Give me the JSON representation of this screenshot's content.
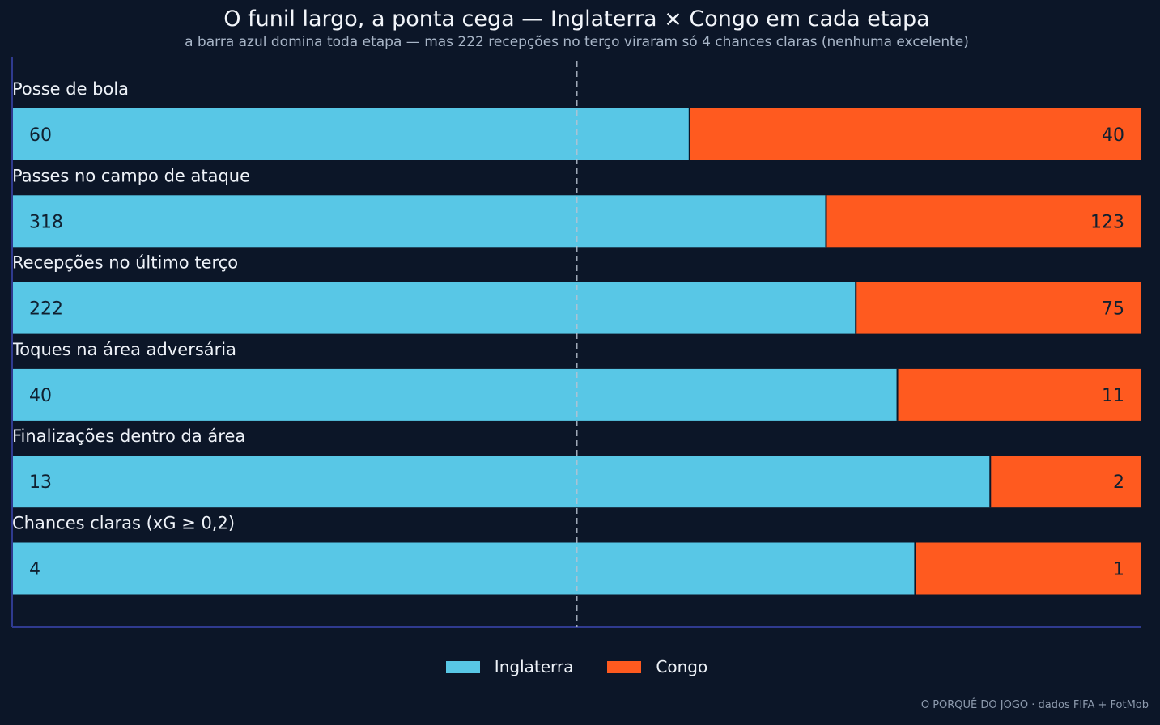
{
  "title": "O funil largo, a ponta cega — Inglaterra × Congo em cada etapa",
  "subtitle": "a barra azul domina toda etapa — mas 222 recepções no terço viraram só 4 chances claras (nenhuma excelente)",
  "footer": "O PORQUÊ DO JOGO · dados FIFA + FotMob",
  "colors": {
    "background": "#0c1628",
    "england": "#58c7e6",
    "congo": "#ff5a1f",
    "axis": "#2f3a8f",
    "midline": "#b9c3d2"
  },
  "chart_data": {
    "type": "bar",
    "orientation": "horizontal-stacked-share",
    "categories": [
      "Posse de bola",
      "Passes no campo de ataque",
      "Recepções no último terço",
      "Toques na área adversária",
      "Finalizações dentro da área",
      "Chances claras (xG ≥ 0,2)"
    ],
    "series": [
      {
        "name": "Inglaterra",
        "color": "#58c7e6",
        "values": [
          60,
          318,
          222,
          40,
          13,
          4
        ]
      },
      {
        "name": "Congo",
        "color": "#ff5a1f",
        "values": [
          40,
          123,
          75,
          11,
          2,
          1
        ]
      }
    ],
    "reference_line": 0.5,
    "legend_position": "bottom-center"
  }
}
